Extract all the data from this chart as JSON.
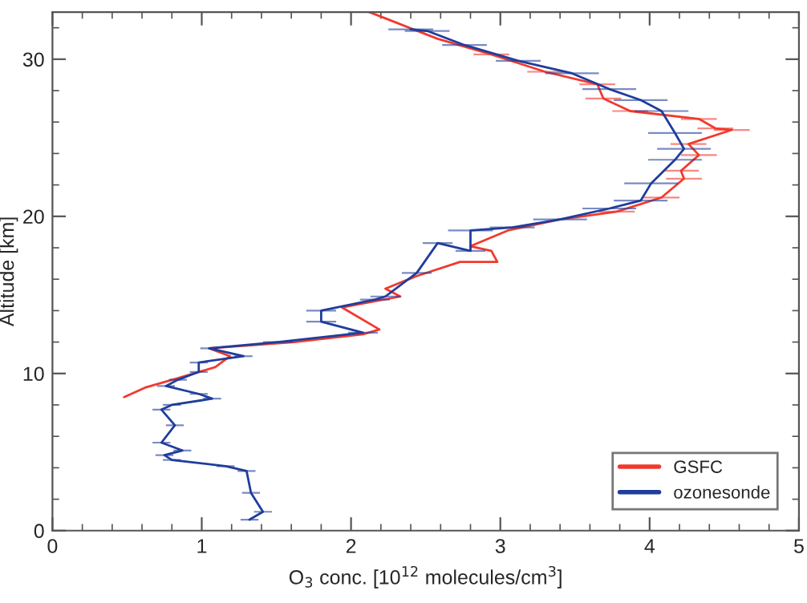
{
  "chart_data": {
    "type": "line",
    "xlabel": "O$_{3}$ conc. [10$^{12}$ molecules/cm$^{3}$]",
    "ylabel": "Altitude [km]",
    "xlim": [
      0,
      5
    ],
    "xticks": [
      0,
      1,
      2,
      3,
      4,
      5
    ],
    "ylim": [
      0,
      33
    ],
    "yticks": [
      0,
      10,
      20,
      30
    ],
    "grid": false,
    "legend": "bottom right",
    "marker": "none",
    "line_style": "solid",
    "series": [
      {
        "name": "GSFC",
        "color": "#f03a2e",
        "x": [
          0.48,
          0.62,
          0.84,
          1.09,
          1.19,
          1.05,
          1.62,
          2.08,
          2.19,
          1.94,
          2.33,
          2.23,
          2.44,
          2.73,
          2.98,
          2.94,
          2.8,
          3.05,
          3.4,
          3.78,
          4.08,
          4.23,
          4.21,
          4.33,
          4.26,
          4.55,
          4.44,
          4.33,
          3.87,
          3.69,
          3.65,
          3.3,
          2.94,
          2.58,
          2.23,
          2.12
        ],
        "values": [
          8.5,
          9.1,
          9.7,
          10.4,
          11.1,
          11.6,
          12.0,
          12.5,
          12.8,
          14.2,
          14.9,
          15.4,
          16.2,
          17.1,
          17.1,
          17.8,
          18.1,
          19.1,
          19.8,
          20.3,
          21.2,
          22.4,
          22.9,
          23.9,
          24.6,
          25.5,
          25.6,
          26.2,
          26.7,
          27.5,
          28.4,
          29.2,
          30.3,
          31.3,
          32.6,
          33.0
        ],
        "xerrors": [
          null,
          null,
          null,
          null,
          null,
          null,
          null,
          null,
          null,
          null,
          null,
          null,
          null,
          null,
          null,
          null,
          null,
          null,
          null,
          0.12,
          0.12,
          0.12,
          0.12,
          0.12,
          0.12,
          0.12,
          0.12,
          0.12,
          0.12,
          0.12,
          0.12,
          0.12,
          0.12,
          null,
          null,
          null
        ]
      },
      {
        "name": "ozonesonde",
        "color": "#1f3d9c",
        "x": [
          1.32,
          1.41,
          1.33,
          1.3,
          1.16,
          0.8,
          0.75,
          0.87,
          0.73,
          0.82,
          0.73,
          0.8,
          1.07,
          0.98,
          0.76,
          0.84,
          0.98,
          0.98,
          1.28,
          1.05,
          1.51,
          2.08,
          1.8,
          1.8,
          2.16,
          2.23,
          2.44,
          2.58,
          2.8,
          2.8,
          3.08,
          3.4,
          3.73,
          3.94,
          4.01,
          4.17,
          4.23,
          4.17,
          4.08,
          3.94,
          3.73,
          3.48,
          3.12,
          2.76,
          2.51,
          2.4
        ],
        "values": [
          0.7,
          1.2,
          2.4,
          3.8,
          4.1,
          4.5,
          4.8,
          5.1,
          5.6,
          6.7,
          7.7,
          8.0,
          8.4,
          8.7,
          9.2,
          9.6,
          10.1,
          10.7,
          11.1,
          11.6,
          12.0,
          12.6,
          13.3,
          14.0,
          14.7,
          14.9,
          16.4,
          18.3,
          17.8,
          19.1,
          19.3,
          19.8,
          20.5,
          21.0,
          22.1,
          23.6,
          24.3,
          25.3,
          26.7,
          27.4,
          28.1,
          29.1,
          29.9,
          30.9,
          31.8,
          31.9
        ],
        "xerrors": [
          0.06,
          0.06,
          0.06,
          0.06,
          0.06,
          0.06,
          0.06,
          0.06,
          0.06,
          0.06,
          0.06,
          0.06,
          0.06,
          0.06,
          0.06,
          0.06,
          0.06,
          0.06,
          0.06,
          0.06,
          0.1,
          0.1,
          0.1,
          0.1,
          0.1,
          0.1,
          0.1,
          0.1,
          0.1,
          0.15,
          0.15,
          0.18,
          0.18,
          0.18,
          0.18,
          0.18,
          0.18,
          0.18,
          0.18,
          0.18,
          0.18,
          0.18,
          0.15,
          0.15,
          0.15,
          0.15
        ]
      }
    ]
  }
}
